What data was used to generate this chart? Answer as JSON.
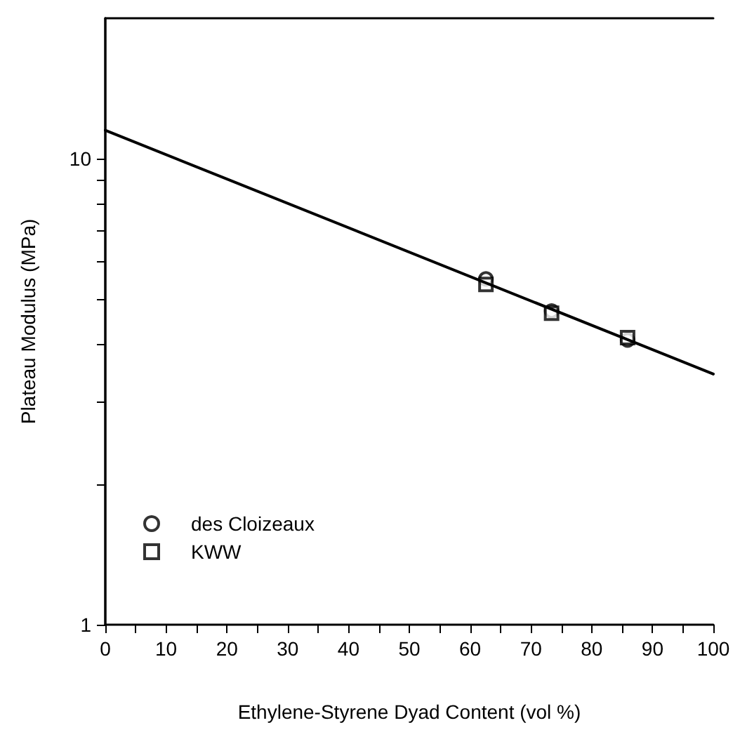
{
  "chart_data": {
    "type": "scatter",
    "xlabel": "Ethylene-Styrene Dyad Content (vol %)",
    "ylabel": "Plateau Modulus (MPa)",
    "series": [
      {
        "name": "des Cloizeaux",
        "color": "#000000",
        "marker": "circle",
        "x": [
          62.6,
          73.4,
          85.9
        ],
        "values": [
          5.52,
          4.71,
          4.08
        ]
      },
      {
        "name": "KWW",
        "color": "#000000",
        "marker": "square",
        "x": [
          62.6,
          73.4,
          85.9
        ],
        "values": [
          5.37,
          4.66,
          4.13
        ]
      },
      {
        "type": "line",
        "color": "#000000",
        "marker": "none",
        "line_style": "solid",
        "x": [
          0,
          100
        ],
        "values": [
          11.5,
          3.45
        ]
      }
    ],
    "xlim": [
      0,
      100
    ],
    "xticks": [
      0,
      {
        "value": 5,
        "label": null
      },
      10,
      {
        "value": 15,
        "label": null
      },
      20,
      {
        "value": 25,
        "label": null
      },
      30,
      {
        "value": 35,
        "label": null
      },
      40,
      {
        "value": 45,
        "label": null
      },
      50,
      {
        "value": 55,
        "label": null
      },
      60,
      {
        "value": 65,
        "label": null
      },
      70,
      {
        "value": 75,
        "label": null
      },
      80,
      {
        "value": 85,
        "label": null
      },
      90,
      {
        "value": 95,
        "label": null
      },
      100
    ],
    "ylim": [
      1,
      20
    ],
    "yticks": [
      1,
      {
        "value": 2,
        "label": null
      },
      {
        "value": 3,
        "label": null
      },
      {
        "value": 4,
        "label": null
      },
      {
        "value": 5,
        "label": null
      },
      {
        "value": 6,
        "label": null
      },
      {
        "value": 7,
        "label": null
      },
      {
        "value": 8,
        "label": null
      },
      {
        "value": 9,
        "label": null
      },
      10
    ],
    "log": "y",
    "grid": false,
    "legend": "bottom left"
  }
}
